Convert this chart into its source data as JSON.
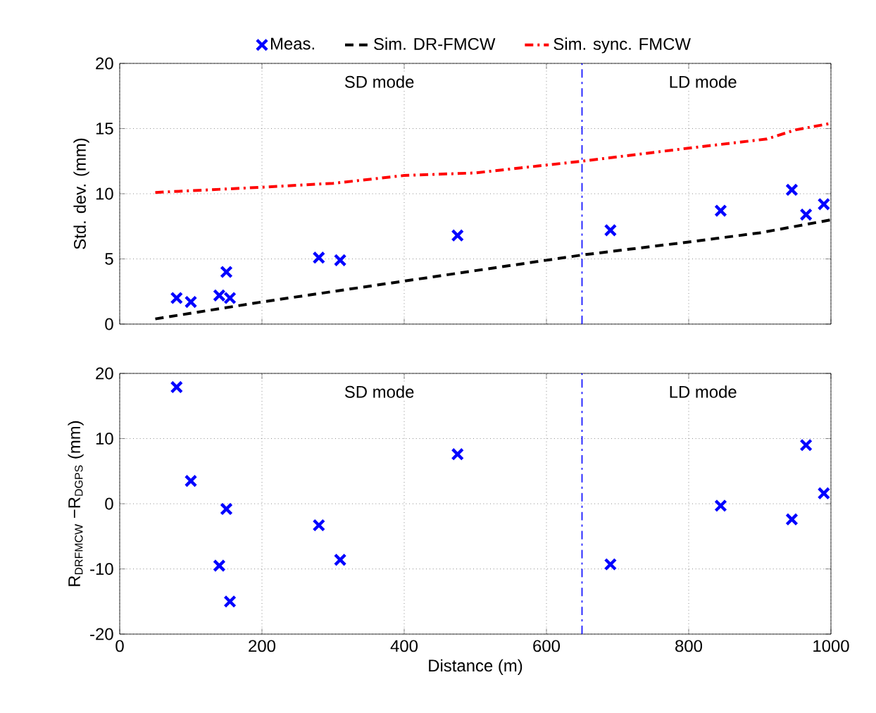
{
  "chart_data": [
    {
      "type": "scatter",
      "ylabel": "Std. dev. (mm)",
      "xlim": [
        0,
        1000
      ],
      "xticks": [
        0,
        200,
        400,
        600,
        800,
        1000
      ],
      "ylim": [
        0,
        20
      ],
      "yticks": [
        0,
        5,
        10,
        15,
        20
      ],
      "grid": true,
      "legend": "top",
      "tick_labels": "y",
      "annotations": [
        "SD mode",
        "LD mode"
      ],
      "ref_lines": [
        {
          "axis": "x",
          "value": 650,
          "color": "#0000ff",
          "line_style": "dashdot"
        }
      ],
      "series": [
        {
          "name": "Meas.",
          "marker": "cross",
          "color": "#0000ff",
          "x": [
            80,
            100,
            140,
            150,
            155,
            280,
            310,
            475,
            690,
            845,
            945,
            965,
            990
          ],
          "values": [
            2.0,
            1.7,
            2.2,
            4.0,
            2.0,
            5.1,
            4.9,
            6.8,
            7.2,
            8.7,
            10.3,
            8.4,
            9.2
          ]
        },
        {
          "name": "Sim. DR-FMCW",
          "type": "line",
          "marker": "none",
          "line_style": "dashed",
          "color": "#000000",
          "x": [
            50,
            200,
            400,
            500,
            650,
            800,
            900,
            1000
          ],
          "values": [
            0.4,
            1.7,
            3.3,
            4.1,
            5.3,
            6.3,
            7.0,
            8.0
          ]
        },
        {
          "name": "Sim. sync. FMCW",
          "type": "line",
          "marker": "none",
          "line_style": "dashdot",
          "color": "#ff0000",
          "x": [
            50,
            200,
            300,
            400,
            500,
            600,
            650,
            800,
            910,
            950,
            1000
          ],
          "values": [
            10.1,
            10.5,
            10.8,
            11.4,
            11.6,
            12.2,
            12.5,
            13.5,
            14.2,
            14.9,
            15.4
          ]
        }
      ]
    },
    {
      "type": "scatter",
      "xlabel": "Distance (m)",
      "ylabel": "R$_{DRFMCW}$ −R$_{DGPS}$ (mm)",
      "xlim": [
        0,
        1000
      ],
      "xticks": [
        0,
        200,
        400,
        600,
        800,
        1000
      ],
      "ylim": [
        -20,
        20
      ],
      "yticks": [
        -20,
        -10,
        0,
        10,
        20
      ],
      "grid": true,
      "annotations": [
        "SD mode",
        "LD mode"
      ],
      "ref_lines": [
        {
          "axis": "x",
          "value": 650,
          "color": "#0000ff",
          "line_style": "dashdot"
        }
      ],
      "series": [
        {
          "marker": "cross",
          "color": "#0000ff",
          "x": [
            80,
            100,
            140,
            150,
            155,
            280,
            310,
            475,
            690,
            845,
            945,
            965,
            990
          ],
          "values": [
            17.9,
            3.5,
            -9.5,
            -0.8,
            -15.0,
            -3.3,
            -8.6,
            7.6,
            -9.3,
            -0.3,
            -2.4,
            9.0,
            1.6
          ]
        }
      ]
    }
  ]
}
